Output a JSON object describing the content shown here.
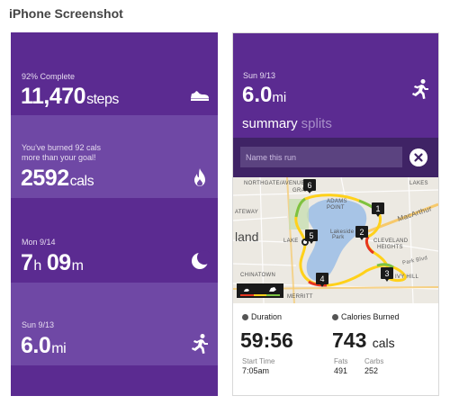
{
  "page": {
    "heading": "iPhone Screenshot"
  },
  "left_screen": {
    "tiles": [
      {
        "label": "92% Complete",
        "value": "11,470",
        "unit": "steps",
        "icon": "shoe-icon"
      },
      {
        "label_line1": "You've burned 92 cals",
        "label_line2": "more than your goal!",
        "value": "2592",
        "unit": "cals",
        "icon": "flame-icon"
      },
      {
        "label": "Mon 9/14",
        "hours": "7",
        "hours_unit": "h",
        "minutes": "09",
        "minutes_unit": "m",
        "icon": "moon-icon"
      },
      {
        "label": "Sun 9/13",
        "value": "6.0",
        "unit": "mi",
        "icon": "runner-icon"
      }
    ]
  },
  "right_screen": {
    "date": "Sun 9/13",
    "distance": "6.0",
    "distance_unit": "mi",
    "tabs": {
      "active": "summary",
      "inactive": "splits"
    },
    "name_placeholder": "Name this run",
    "map": {
      "labels": {
        "northgate": "NORTHGATE/AVENUE",
        "grand_a": "GRAND",
        "grand_b": "ATEWAY",
        "adams": "ADAMS",
        "adams2": "POINT",
        "lakeshore": "LAKESHORE",
        "oakland": "land",
        "lakeside": "Lakeside",
        "lakeside2": "Park",
        "lake": "LAKE",
        "cleveland": "CLEVELAND",
        "heights": "HEIGHTS",
        "macarthur": "MacArthur",
        "lakes": "LAKES",
        "park_blvd": "Park Blvd",
        "ivy_hill": "IVY HILL",
        "chinatown": "CHINATOWN",
        "merritt": "MERRITT"
      },
      "markers": [
        "1",
        "2",
        "3",
        "4",
        "5",
        "6"
      ],
      "colors": {
        "water": "#a7c4e6",
        "route_fast": "#ffd11a",
        "route_slow": "#e6361f",
        "route_mid": "#7cc242",
        "road_major": "#f7c96b"
      }
    },
    "stats": {
      "duration": {
        "title": "Duration",
        "value": "59:56",
        "sub_label": "Start Time",
        "sub_value": "7:05am"
      },
      "calories": {
        "title": "Calories Burned",
        "value": "743",
        "unit": "cals",
        "fats_label": "Fats",
        "fats_value": "491",
        "carbs_label": "Carbs",
        "carbs_value": "252"
      }
    }
  },
  "colors": {
    "accent_purple": "#5b2b91",
    "light_purple": "#6f48a5",
    "dark_purple": "#3f2365"
  }
}
